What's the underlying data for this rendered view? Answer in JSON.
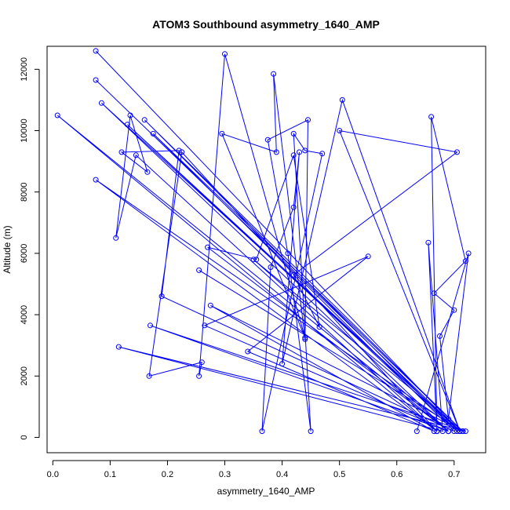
{
  "chart_data": {
    "type": "line",
    "title": "ATOM3 Southbound asymmetry_1640_AMP",
    "xlabel": "asymmetry_1640_AMP",
    "ylabel": "Altitude (m)",
    "xlim": [
      -0.01,
      0.755
    ],
    "ylim": [
      -500,
      12750
    ],
    "xticks": [
      "0.0",
      "0.1",
      "0.2",
      "0.3",
      "0.4",
      "0.5",
      "0.6",
      "0.7"
    ],
    "yticks": [
      "0",
      "2000",
      "4000",
      "6000",
      "8000",
      "10000",
      "12000"
    ],
    "series_color": "#0000ff",
    "marker": "open-circle",
    "grid": false,
    "series": [
      {
        "x": [
          0.075,
          0.71,
          0.075,
          0.71,
          0.085,
          0.69,
          0.008,
          0.67,
          0.075,
          0.71,
          0.13,
          0.705,
          0.16,
          0.715,
          0.175,
          0.7,
          0.19,
          0.22,
          0.12,
          0.165,
          0.135,
          0.11,
          0.145,
          0.67,
          0.225,
          0.168,
          0.26,
          0.255,
          0.3,
          0.44,
          0.295,
          0.39,
          0.385,
          0.44,
          0.445,
          0.375,
          0.41,
          0.45,
          0.42,
          0.44,
          0.47,
          0.365,
          0.38,
          0.42,
          0.43,
          0.4,
          0.505,
          0.71,
          0.5,
          0.705,
          0.42,
          0.465,
          0.42,
          0.355,
          0.27,
          0.69,
          0.35,
          0.715,
          0.255,
          0.715,
          0.275,
          0.665,
          0.34,
          0.55,
          0.265,
          0.69,
          0.17,
          0.72,
          0.115,
          0.68,
          0.655,
          0.67,
          0.66,
          0.72,
          0.665,
          0.7,
          0.675,
          0.69,
          0.725,
          0.635
        ],
        "y": [
          12600,
          200,
          11650,
          200,
          10900,
          200,
          10500,
          200,
          8400,
          200,
          10200,
          200,
          10350,
          200,
          9900,
          200,
          4600,
          9350,
          9300,
          8650,
          10500,
          6500,
          9200,
          200,
          9300,
          2000,
          2450,
          2000,
          12500,
          3250,
          9900,
          9300,
          11850,
          3200,
          10350,
          9700,
          6000,
          200,
          9900,
          9350,
          9250,
          200,
          5550,
          7500,
          9300,
          2400,
          11000,
          200,
          10000,
          9300,
          5300,
          3600,
          9200,
          5800,
          6200,
          200,
          5800,
          200,
          5450,
          200,
          4300,
          200,
          2800,
          5900,
          3650,
          200,
          3650,
          200,
          2950,
          200,
          6350,
          200,
          10450,
          5750,
          4700,
          4150,
          3300,
          600,
          6000,
          200
        ]
      }
    ]
  }
}
